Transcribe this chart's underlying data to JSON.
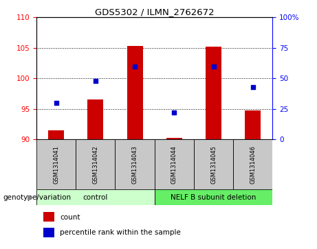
{
  "title": "GDS5302 / ILMN_2762672",
  "samples": [
    "GSM1314041",
    "GSM1314042",
    "GSM1314043",
    "GSM1314044",
    "GSM1314045",
    "GSM1314046"
  ],
  "counts": [
    91.5,
    96.5,
    105.3,
    90.3,
    105.2,
    94.8
  ],
  "percentile_ranks": [
    30,
    48,
    60,
    22,
    60,
    43
  ],
  "ylim_left": [
    90,
    110
  ],
  "ylim_right": [
    0,
    100
  ],
  "yticks_left": [
    90,
    95,
    100,
    105,
    110
  ],
  "yticks_right": [
    0,
    25,
    50,
    75,
    100
  ],
  "ytick_labels_right": [
    "0",
    "25",
    "50",
    "75",
    "100%"
  ],
  "bar_color": "#cc0000",
  "dot_color": "#0000cc",
  "bar_width": 0.4,
  "control_color": "#ccffcc",
  "deletion_color": "#66ee66",
  "xlabel_bg": "#c8c8c8",
  "genotype_label": "genotype/variation",
  "legend_count": "count",
  "legend_percentile": "percentile rank within the sample"
}
